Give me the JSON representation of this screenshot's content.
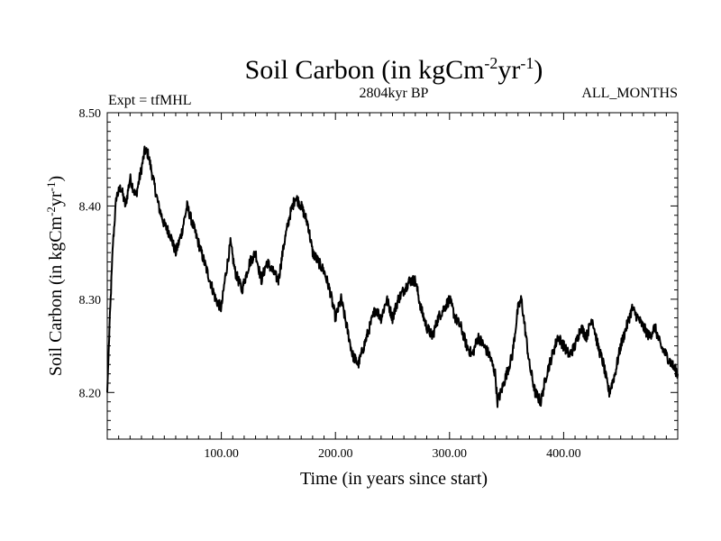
{
  "chart_data": {
    "type": "line",
    "title": "Soil Carbon (in kgCm-2yr-1)",
    "title_parts": {
      "base": "Soil Carbon (in kgCm",
      "sup1": "-2",
      "mid": "yr",
      "sup2": "-1",
      "end": ")"
    },
    "left_annotation": "Expt = tfMHL",
    "center_annotation": "2804kyr BP",
    "right_annotation": "ALL_MONTHS",
    "xlabel": "Time (in years since start)",
    "ylabel": "Soil Carbon (in kgCm-2yr-1)",
    "ylabel_parts": {
      "base": "Soil Carbon (in kgCm",
      "sup1": "-2",
      "mid": "yr",
      "sup2": "-1",
      "end": ")"
    },
    "xlim": [
      0,
      500
    ],
    "ylim": [
      8.15,
      8.5
    ],
    "x_ticks": [
      100,
      200,
      300,
      400
    ],
    "x_tick_labels": [
      "100.00",
      "200.00",
      "300.00",
      "400.00"
    ],
    "y_ticks": [
      8.2,
      8.3,
      8.4,
      8.5
    ],
    "y_tick_labels": [
      "8.20",
      "8.30",
      "8.40",
      "8.50"
    ],
    "series": [
      {
        "name": "Soil Carbon",
        "color": "#000000",
        "x": [
          0,
          2,
          5,
          8,
          12,
          16,
          20,
          25,
          30,
          33,
          36,
          40,
          45,
          50,
          55,
          60,
          65,
          70,
          75,
          80,
          85,
          90,
          95,
          100,
          103,
          108,
          112,
          118,
          125,
          130,
          135,
          140,
          145,
          150,
          155,
          160,
          165,
          170,
          173,
          176,
          180,
          185,
          190,
          195,
          200,
          205,
          210,
          215,
          220,
          225,
          230,
          235,
          240,
          245,
          250,
          255,
          260,
          265,
          270,
          275,
          280,
          285,
          290,
          295,
          300,
          305,
          310,
          315,
          320,
          325,
          330,
          335,
          340,
          342,
          345,
          350,
          355,
          360,
          363,
          366,
          370,
          375,
          380,
          385,
          390,
          395,
          400,
          405,
          410,
          415,
          420,
          425,
          430,
          435,
          438,
          440,
          445,
          450,
          455,
          460,
          465,
          470,
          475,
          480,
          485,
          490,
          495,
          500
        ],
        "values": [
          8.2,
          8.27,
          8.36,
          8.41,
          8.42,
          8.4,
          8.43,
          8.41,
          8.44,
          8.46,
          8.455,
          8.43,
          8.4,
          8.38,
          8.37,
          8.35,
          8.37,
          8.4,
          8.38,
          8.36,
          8.34,
          8.32,
          8.3,
          8.29,
          8.32,
          8.36,
          8.33,
          8.31,
          8.34,
          8.35,
          8.32,
          8.34,
          8.33,
          8.32,
          8.36,
          8.39,
          8.41,
          8.4,
          8.39,
          8.38,
          8.35,
          8.34,
          8.33,
          8.31,
          8.28,
          8.3,
          8.27,
          8.24,
          8.23,
          8.25,
          8.27,
          8.29,
          8.28,
          8.3,
          8.28,
          8.3,
          8.31,
          8.32,
          8.32,
          8.29,
          8.27,
          8.26,
          8.28,
          8.29,
          8.3,
          8.28,
          8.27,
          8.25,
          8.24,
          8.26,
          8.25,
          8.24,
          8.22,
          8.19,
          8.2,
          8.22,
          8.24,
          8.29,
          8.3,
          8.27,
          8.23,
          8.2,
          8.19,
          8.22,
          8.24,
          8.26,
          8.25,
          8.24,
          8.25,
          8.27,
          8.26,
          8.28,
          8.25,
          8.23,
          8.21,
          8.2,
          8.22,
          8.25,
          8.27,
          8.29,
          8.28,
          8.27,
          8.26,
          8.27,
          8.25,
          8.24,
          8.23,
          8.22
        ]
      }
    ]
  }
}
